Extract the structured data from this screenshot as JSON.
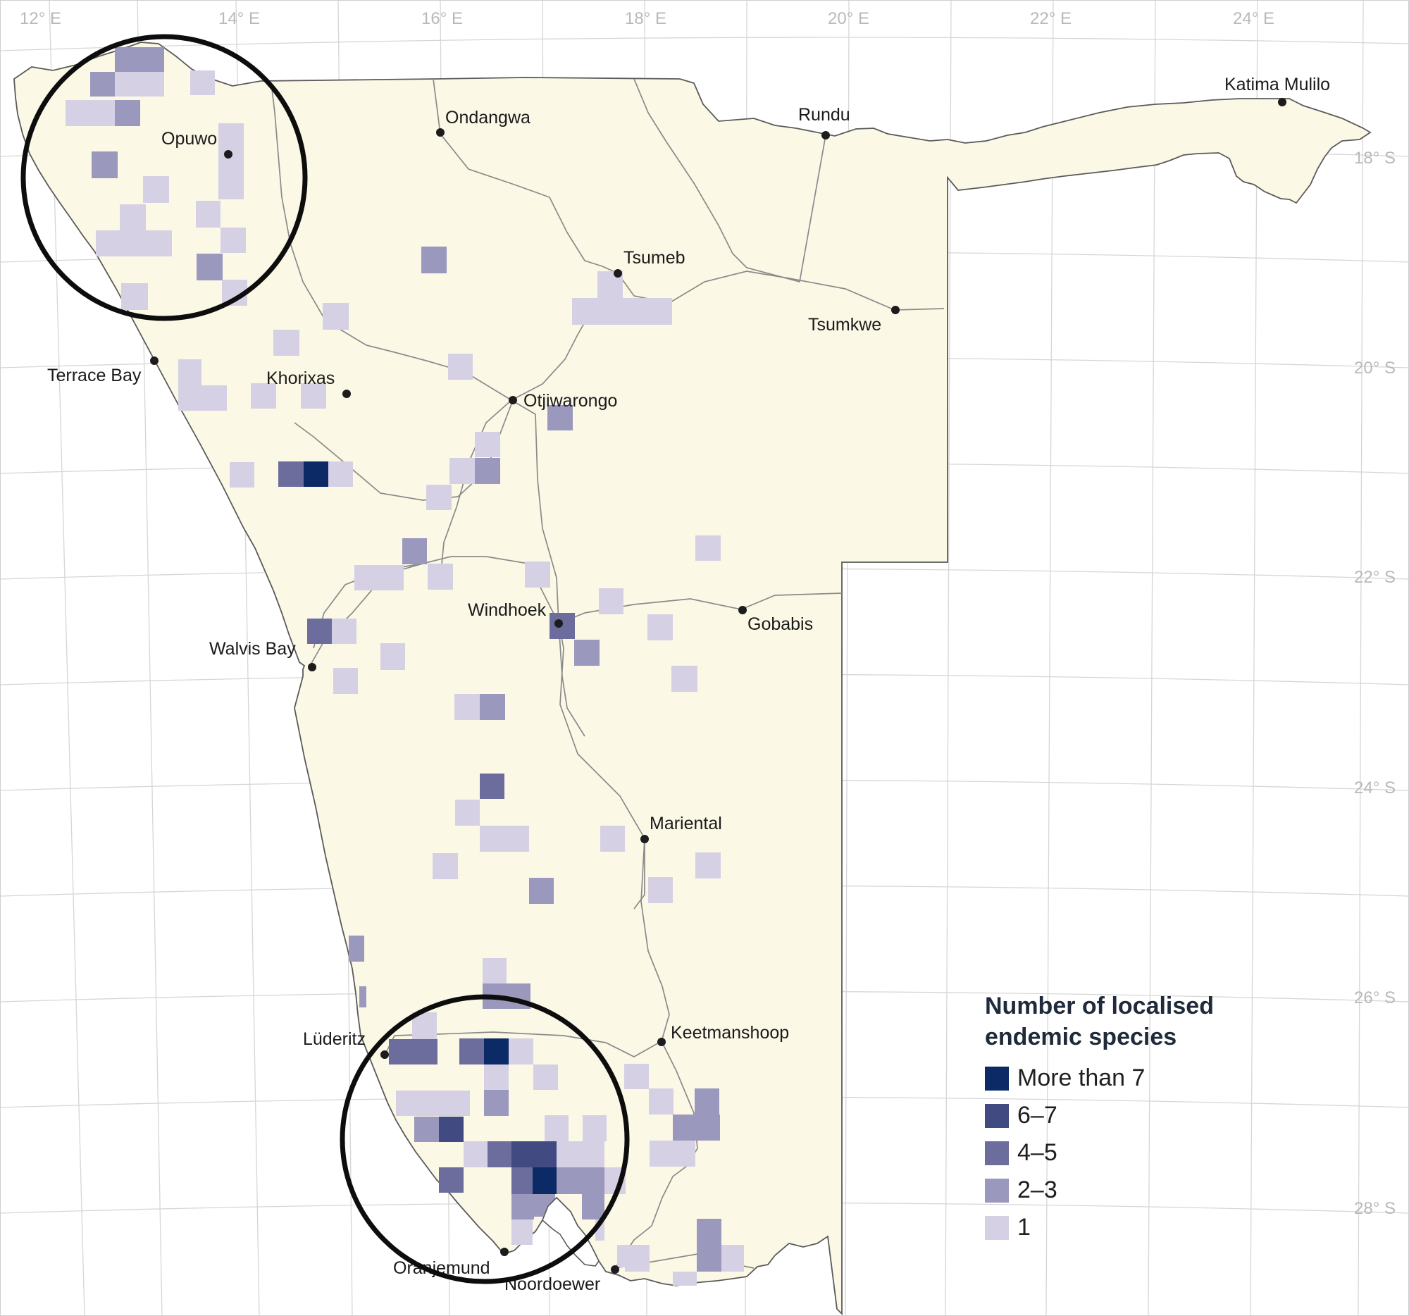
{
  "map": {
    "longitude_labels": [
      "12° E",
      "14° E",
      "16° E",
      "18° E",
      "20° E",
      "22° E",
      "24° E"
    ],
    "latitude_labels": [
      "18° S",
      "20° S",
      "22° S",
      "24° S",
      "26° S",
      "28° S"
    ],
    "towns": [
      {
        "id": "opuwo",
        "name": "Opuwo"
      },
      {
        "id": "ondangwa",
        "name": "Ondangwa"
      },
      {
        "id": "rundu",
        "name": "Rundu"
      },
      {
        "id": "katima",
        "name": "Katima Mulilo"
      },
      {
        "id": "tsumeb",
        "name": "Tsumeb"
      },
      {
        "id": "tsumkwe",
        "name": "Tsumkwe"
      },
      {
        "id": "terrace",
        "name": "Terrace Bay"
      },
      {
        "id": "khorixas",
        "name": "Khorixas"
      },
      {
        "id": "otjiwarongo",
        "name": "Otjiwarongo"
      },
      {
        "id": "windhoek",
        "name": "Windhoek"
      },
      {
        "id": "gobabis",
        "name": "Gobabis"
      },
      {
        "id": "walvis",
        "name": "Walvis Bay"
      },
      {
        "id": "mariental",
        "name": "Mariental"
      },
      {
        "id": "luderitz",
        "name": "Lüderitz"
      },
      {
        "id": "keetmanshoop",
        "name": "Keetmanshoop"
      },
      {
        "id": "oranjemund",
        "name": "Oranjemund"
      },
      {
        "id": "noordoewer",
        "name": "Noordoewer"
      }
    ]
  },
  "legend": {
    "title_line1": "Number of localised",
    "title_line2": "endemic species",
    "classes": [
      {
        "label": "More than 7",
        "color": "#0b2a66"
      },
      {
        "label": "6–7",
        "color": "#414b82"
      },
      {
        "label": "4–5",
        "color": "#6c6d9c"
      },
      {
        "label": "2–3",
        "color": "#9a98bd"
      },
      {
        "label": "1",
        "color": "#d6d0e4"
      }
    ]
  }
}
